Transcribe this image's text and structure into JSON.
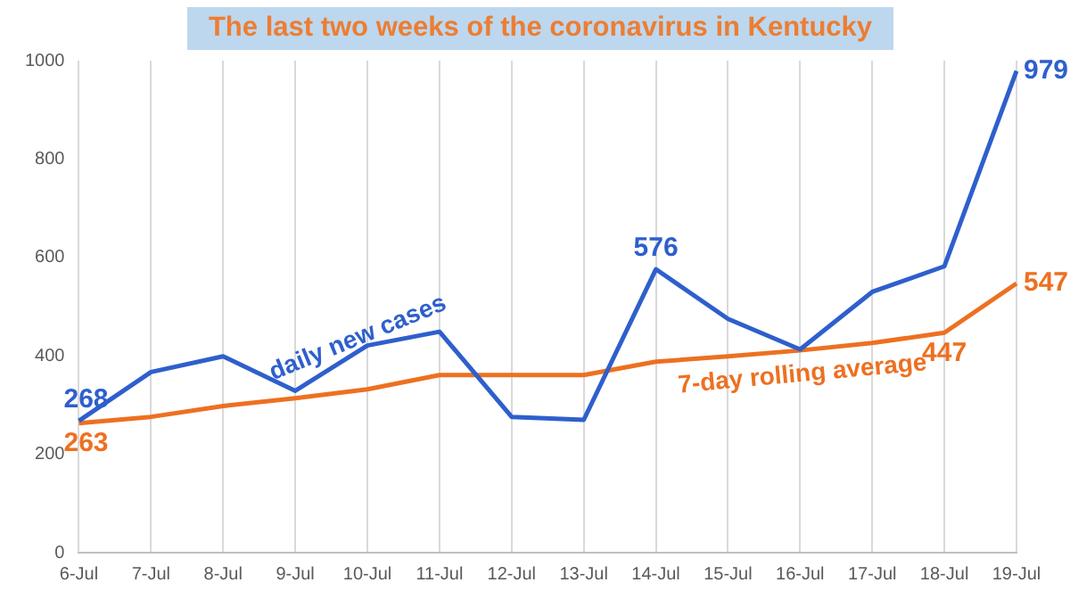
{
  "chart_data": {
    "type": "line",
    "title": "The last two weeks of the coronavirus in Kentucky",
    "categories": [
      "6-Jul",
      "7-Jul",
      "8-Jul",
      "9-Jul",
      "10-Jul",
      "11-Jul",
      "12-Jul",
      "13-Jul",
      "14-Jul",
      "15-Jul",
      "16-Jul",
      "17-Jul",
      "18-Jul",
      "19-Jul"
    ],
    "series": [
      {
        "name": "daily new cases",
        "color": "#2e5fcc",
        "values": [
          268,
          367,
          399,
          329,
          421,
          449,
          276,
          270,
          576,
          475,
          413,
          530,
          582,
          979
        ],
        "value_labels": [
          "268",
          null,
          null,
          null,
          null,
          null,
          null,
          null,
          "576",
          null,
          null,
          null,
          null,
          "979"
        ]
      },
      {
        "name": "7-day rolling average",
        "color": "#ed7021",
        "values": [
          263,
          276,
          298,
          314,
          332,
          361,
          361,
          361,
          388,
          399,
          411,
          426,
          447,
          547
        ],
        "value_labels": [
          "263",
          null,
          null,
          null,
          null,
          null,
          null,
          null,
          null,
          null,
          null,
          null,
          "447",
          "547"
        ]
      }
    ],
    "ylim": [
      0,
      1000
    ],
    "yticks": [
      0,
      200,
      400,
      600,
      800,
      1000
    ],
    "grid": "x",
    "legend": false,
    "marker": "none",
    "line_style": "solid"
  }
}
